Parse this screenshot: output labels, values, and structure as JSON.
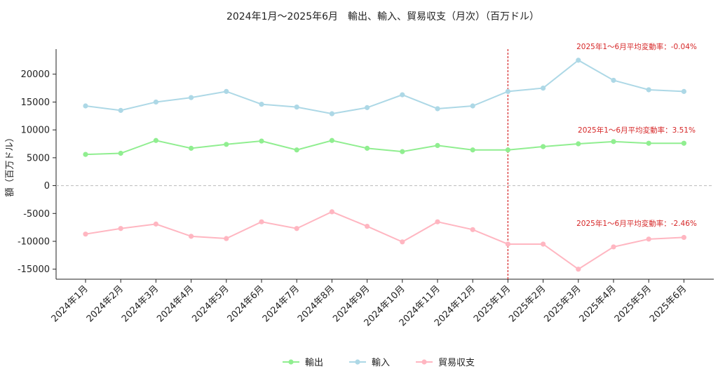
{
  "chart_data": {
    "type": "line",
    "title": "2024年1月〜2025年6月　輸出、輸入、貿易収支（月次）（百万ドル）",
    "xlabel": "",
    "ylabel": "額（百万ドル）",
    "ylim": [
      -16800,
      24500
    ],
    "yticks": [
      -15000,
      -10000,
      -5000,
      0,
      5000,
      10000,
      15000,
      20000
    ],
    "categories": [
      "2024年1月",
      "2024年2月",
      "2024年3月",
      "2024年4月",
      "2024年5月",
      "2024年6月",
      "2024年7月",
      "2024年8月",
      "2024年9月",
      "2024年10月",
      "2024年11月",
      "2024年12月",
      "2025年1月",
      "2025年2月",
      "2025年3月",
      "2025年4月",
      "2025年5月",
      "2025年6月"
    ],
    "series": [
      {
        "name": "輸出",
        "color": "#90ee90",
        "values": [
          5600,
          5800,
          8100,
          6700,
          7400,
          8000,
          6400,
          8100,
          6700,
          6100,
          7200,
          6400,
          6400,
          7000,
          7500,
          7900,
          7600,
          7600
        ]
      },
      {
        "name": "輸入",
        "color": "#add8e6",
        "values": [
          14300,
          13500,
          15000,
          15800,
          16900,
          14600,
          14100,
          12900,
          14000,
          16300,
          13800,
          14300,
          16900,
          17500,
          22500,
          18900,
          17200,
          16900
        ]
      },
      {
        "name": "貿易収支",
        "color": "#ffb6c1",
        "values": [
          -8700,
          -7700,
          -6900,
          -9100,
          -9500,
          -6500,
          -7700,
          -4700,
          -7300,
          -10100,
          -6500,
          -7900,
          -10500,
          -10500,
          -15000,
          -11000,
          -9600,
          -9300
        ]
      }
    ],
    "zero_line": true,
    "vertical_marker": {
      "category": "2025年1月",
      "color": "#d62728"
    },
    "annotations": [
      {
        "text": "2025年1〜6月平均変動率：-0.04%",
        "series": "輸入",
        "y": 25000
      },
      {
        "text": "2025年1〜6月平均変動率：3.51%",
        "series": "輸出",
        "y": 10000
      },
      {
        "text": "2025年1〜6月平均変動率：-2.46%",
        "series": "貿易収支",
        "y": -6700
      }
    ],
    "legend": "bottom-center",
    "grid": false
  }
}
